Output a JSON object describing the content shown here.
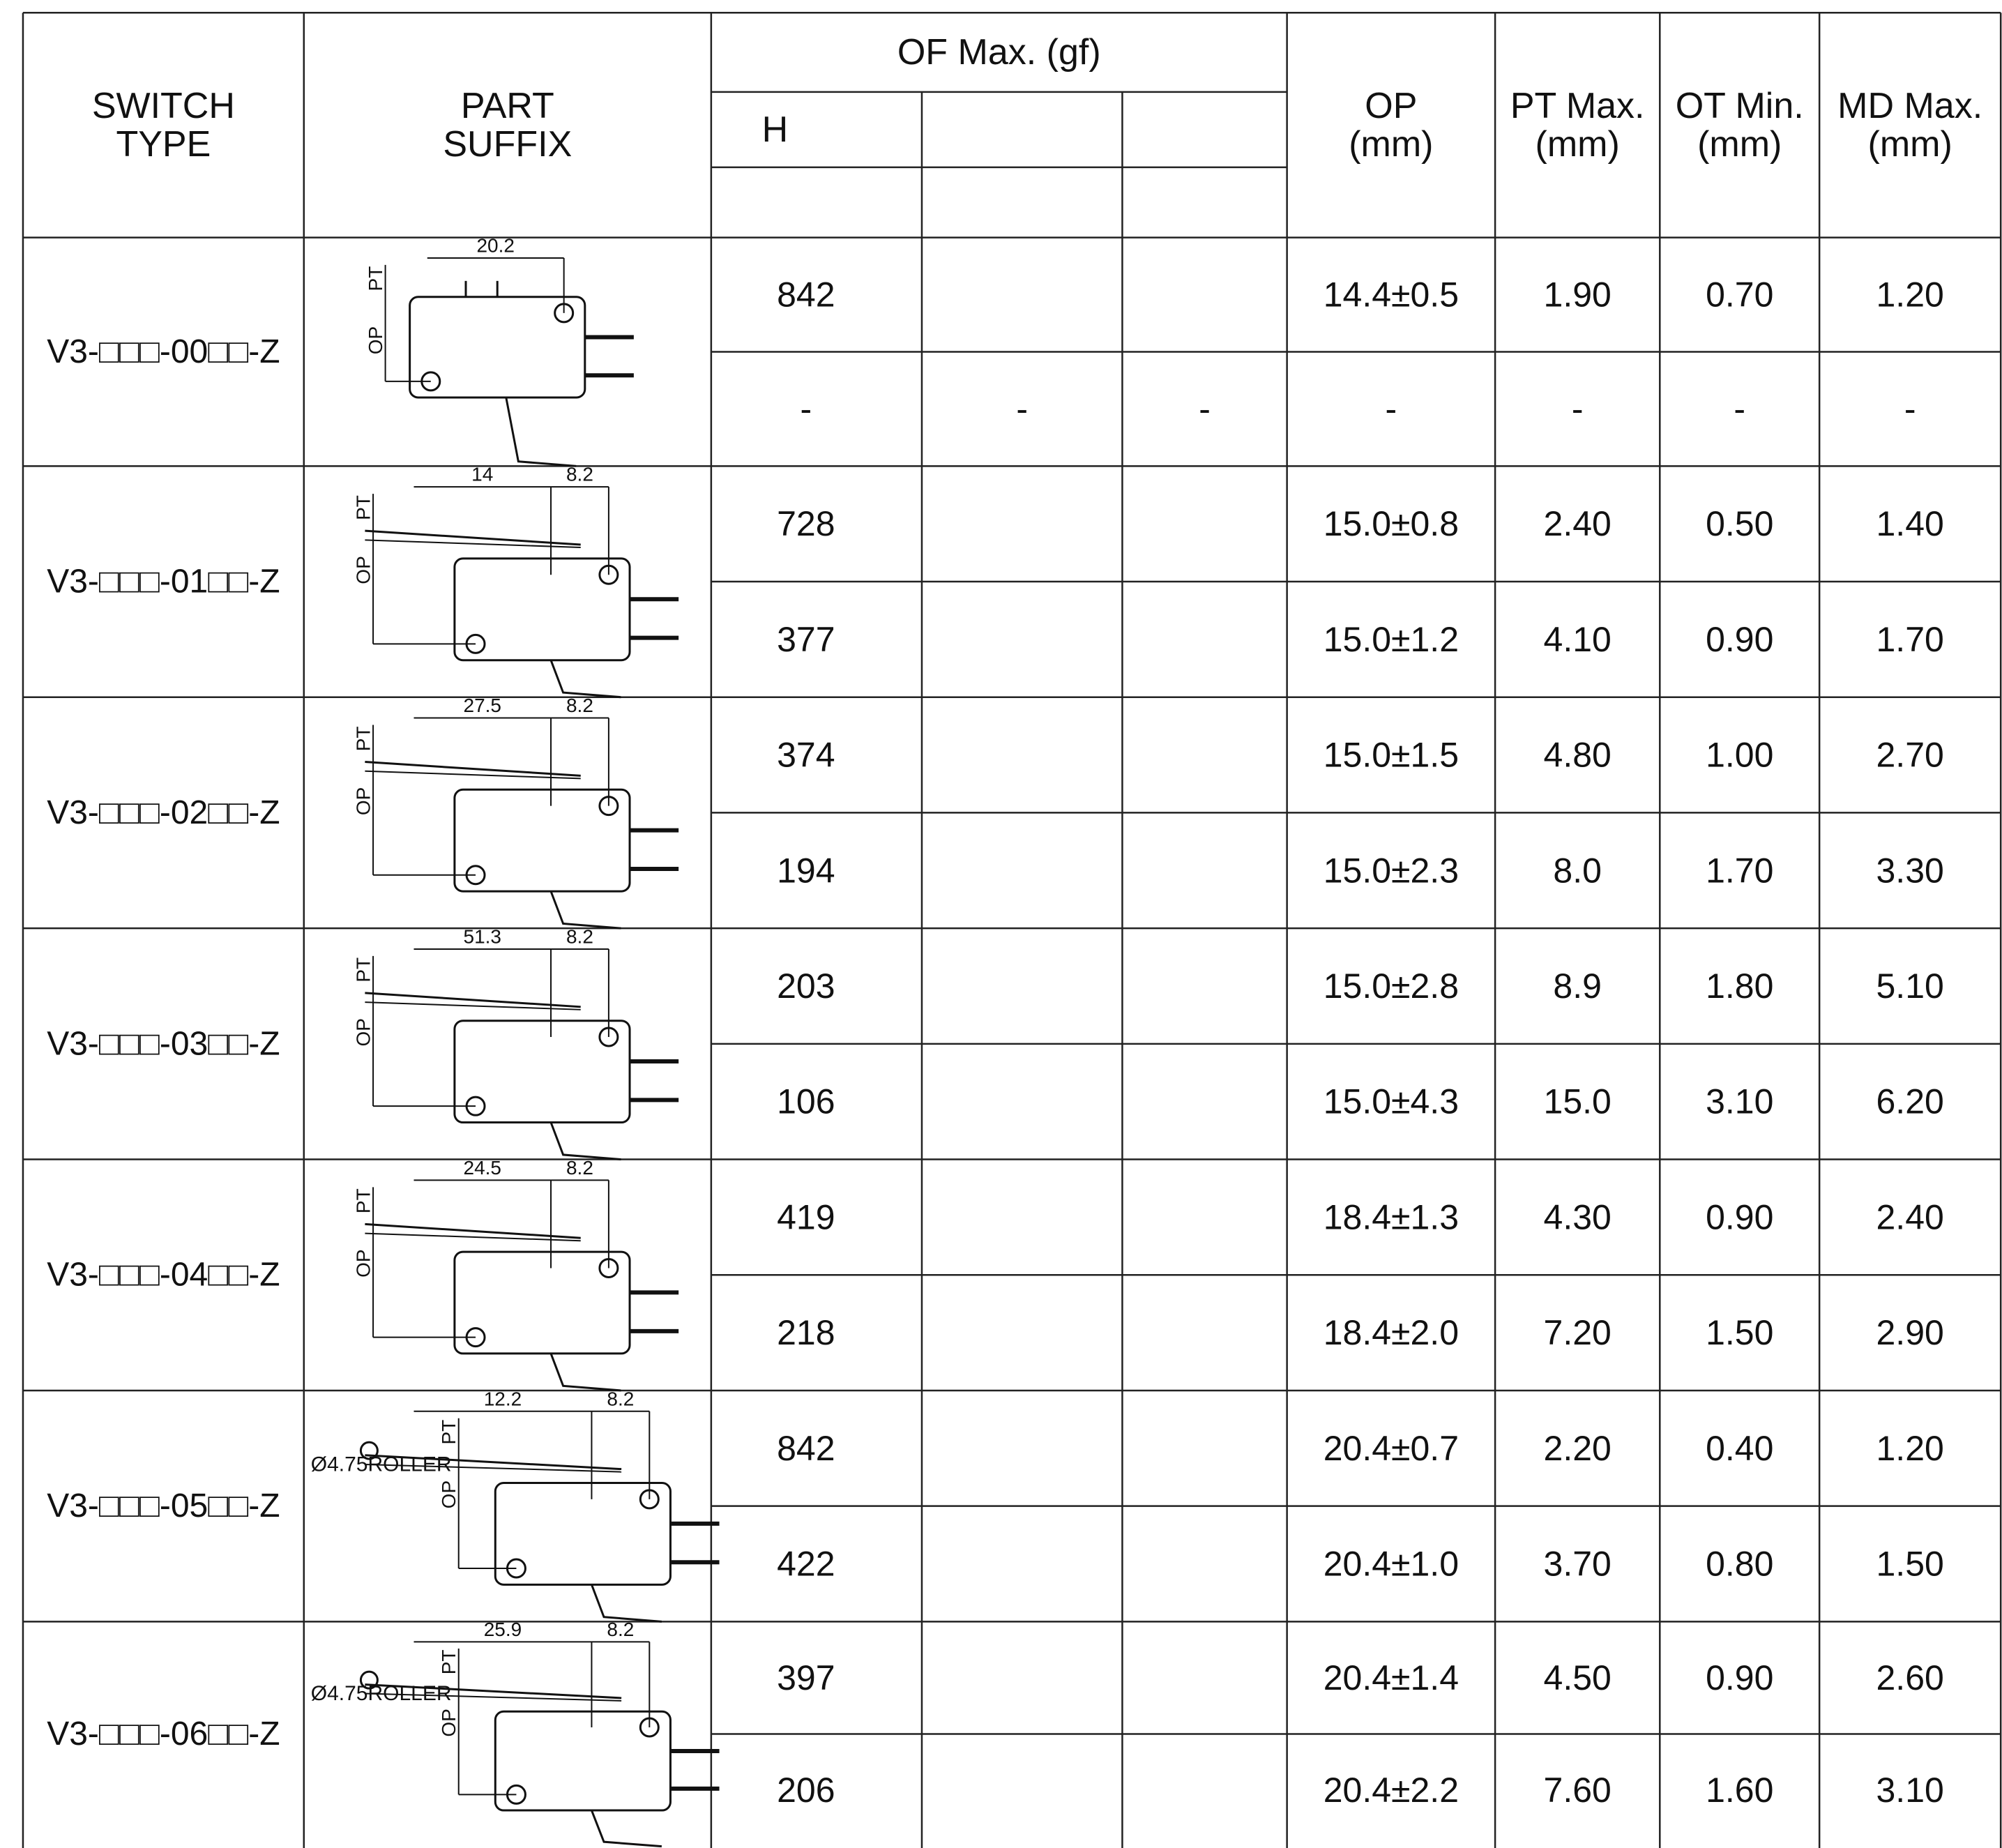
{
  "header": {
    "switch_type": [
      "SWITCH",
      "TYPE"
    ],
    "part_suffix": [
      "PART",
      "SUFFIX"
    ],
    "of_max": "OF Max. (gf)",
    "of_sub": "H",
    "op": [
      "OP",
      "(mm)"
    ],
    "pt_max": [
      "PT Max.",
      "(mm)"
    ],
    "ot_min": [
      "OT Min.",
      "(mm)"
    ],
    "md_max": [
      "MD Max.",
      "(mm)"
    ]
  },
  "rows": [
    {
      "switch_type": "V3-□□□-00□□-Z",
      "drawing": {
        "dim1": "20.2",
        "dim2": "",
        "roller": "",
        "pt": "PT",
        "op": "OP"
      },
      "sub": [
        {
          "of_h": "842",
          "of_2": "",
          "of_3": "",
          "op": "14.4±0.5",
          "pt": "1.90",
          "ot": "0.70",
          "md": "1.20"
        },
        {
          "of_h": "-",
          "of_2": "-",
          "of_3": "-",
          "op": "-",
          "pt": "-",
          "ot": "-",
          "md": "-"
        }
      ]
    },
    {
      "switch_type": "V3-□□□-01□□-Z",
      "drawing": {
        "dim1": "14",
        "dim2": "8.2",
        "roller": "",
        "pt": "PT",
        "op": "OP"
      },
      "sub": [
        {
          "of_h": "728",
          "of_2": "",
          "of_3": "",
          "op": "15.0±0.8",
          "pt": "2.40",
          "ot": "0.50",
          "md": "1.40"
        },
        {
          "of_h": "377",
          "of_2": "",
          "of_3": "",
          "op": "15.0±1.2",
          "pt": "4.10",
          "ot": "0.90",
          "md": "1.70"
        }
      ]
    },
    {
      "switch_type": "V3-□□□-02□□-Z",
      "drawing": {
        "dim1": "27.5",
        "dim2": "8.2",
        "roller": "",
        "pt": "PT",
        "op": "OP"
      },
      "sub": [
        {
          "of_h": "374",
          "of_2": "",
          "of_3": "",
          "op": "15.0±1.5",
          "pt": "4.80",
          "ot": "1.00",
          "md": "2.70"
        },
        {
          "of_h": "194",
          "of_2": "",
          "of_3": "",
          "op": "15.0±2.3",
          "pt": "8.0",
          "ot": "1.70",
          "md": "3.30"
        }
      ]
    },
    {
      "switch_type": "V3-□□□-03□□-Z",
      "drawing": {
        "dim1": "51.3",
        "dim2": "8.2",
        "roller": "",
        "pt": "PT",
        "op": "OP"
      },
      "sub": [
        {
          "of_h": "203",
          "of_2": "",
          "of_3": "",
          "op": "15.0±2.8",
          "pt": "8.9",
          "ot": "1.80",
          "md": "5.10"
        },
        {
          "of_h": "106",
          "of_2": "",
          "of_3": "",
          "op": "15.0±4.3",
          "pt": "15.0",
          "ot": "3.10",
          "md": "6.20"
        }
      ]
    },
    {
      "switch_type": "V3-□□□-04□□-Z",
      "drawing": {
        "dim1": "24.5",
        "dim2": "8.2",
        "roller": "",
        "pt": "PT",
        "op": "OP"
      },
      "sub": [
        {
          "of_h": "419",
          "of_2": "",
          "of_3": "",
          "op": "18.4±1.3",
          "pt": "4.30",
          "ot": "0.90",
          "md": "2.40"
        },
        {
          "of_h": "218",
          "of_2": "",
          "of_3": "",
          "op": "18.4±2.0",
          "pt": "7.20",
          "ot": "1.50",
          "md": "2.90"
        }
      ]
    },
    {
      "switch_type": "V3-□□□-05□□-Z",
      "drawing": {
        "dim1": "12.2",
        "dim2": "8.2",
        "roller": "Ø4.75ROLLER",
        "pt": "PT",
        "op": "OP"
      },
      "sub": [
        {
          "of_h": "842",
          "of_2": "",
          "of_3": "",
          "op": "20.4±0.7",
          "pt": "2.20",
          "ot": "0.40",
          "md": "1.20"
        },
        {
          "of_h": "422",
          "of_2": "",
          "of_3": "",
          "op": "20.4±1.0",
          "pt": "3.70",
          "ot": "0.80",
          "md": "1.50"
        }
      ]
    },
    {
      "switch_type": "V3-□□□-06□□-Z",
      "drawing": {
        "dim1": "25.9",
        "dim2": "8.2",
        "roller": "Ø4.75ROLLER",
        "pt": "PT",
        "op": "OP"
      },
      "sub": [
        {
          "of_h": "397",
          "of_2": "",
          "of_3": "",
          "op": "20.4±1.4",
          "pt": "4.50",
          "ot": "0.90",
          "md": "2.60"
        },
        {
          "of_h": "206",
          "of_2": "",
          "of_3": "",
          "op": "20.4±2.2",
          "pt": "7.60",
          "ot": "1.60",
          "md": "3.10"
        }
      ]
    }
  ]
}
